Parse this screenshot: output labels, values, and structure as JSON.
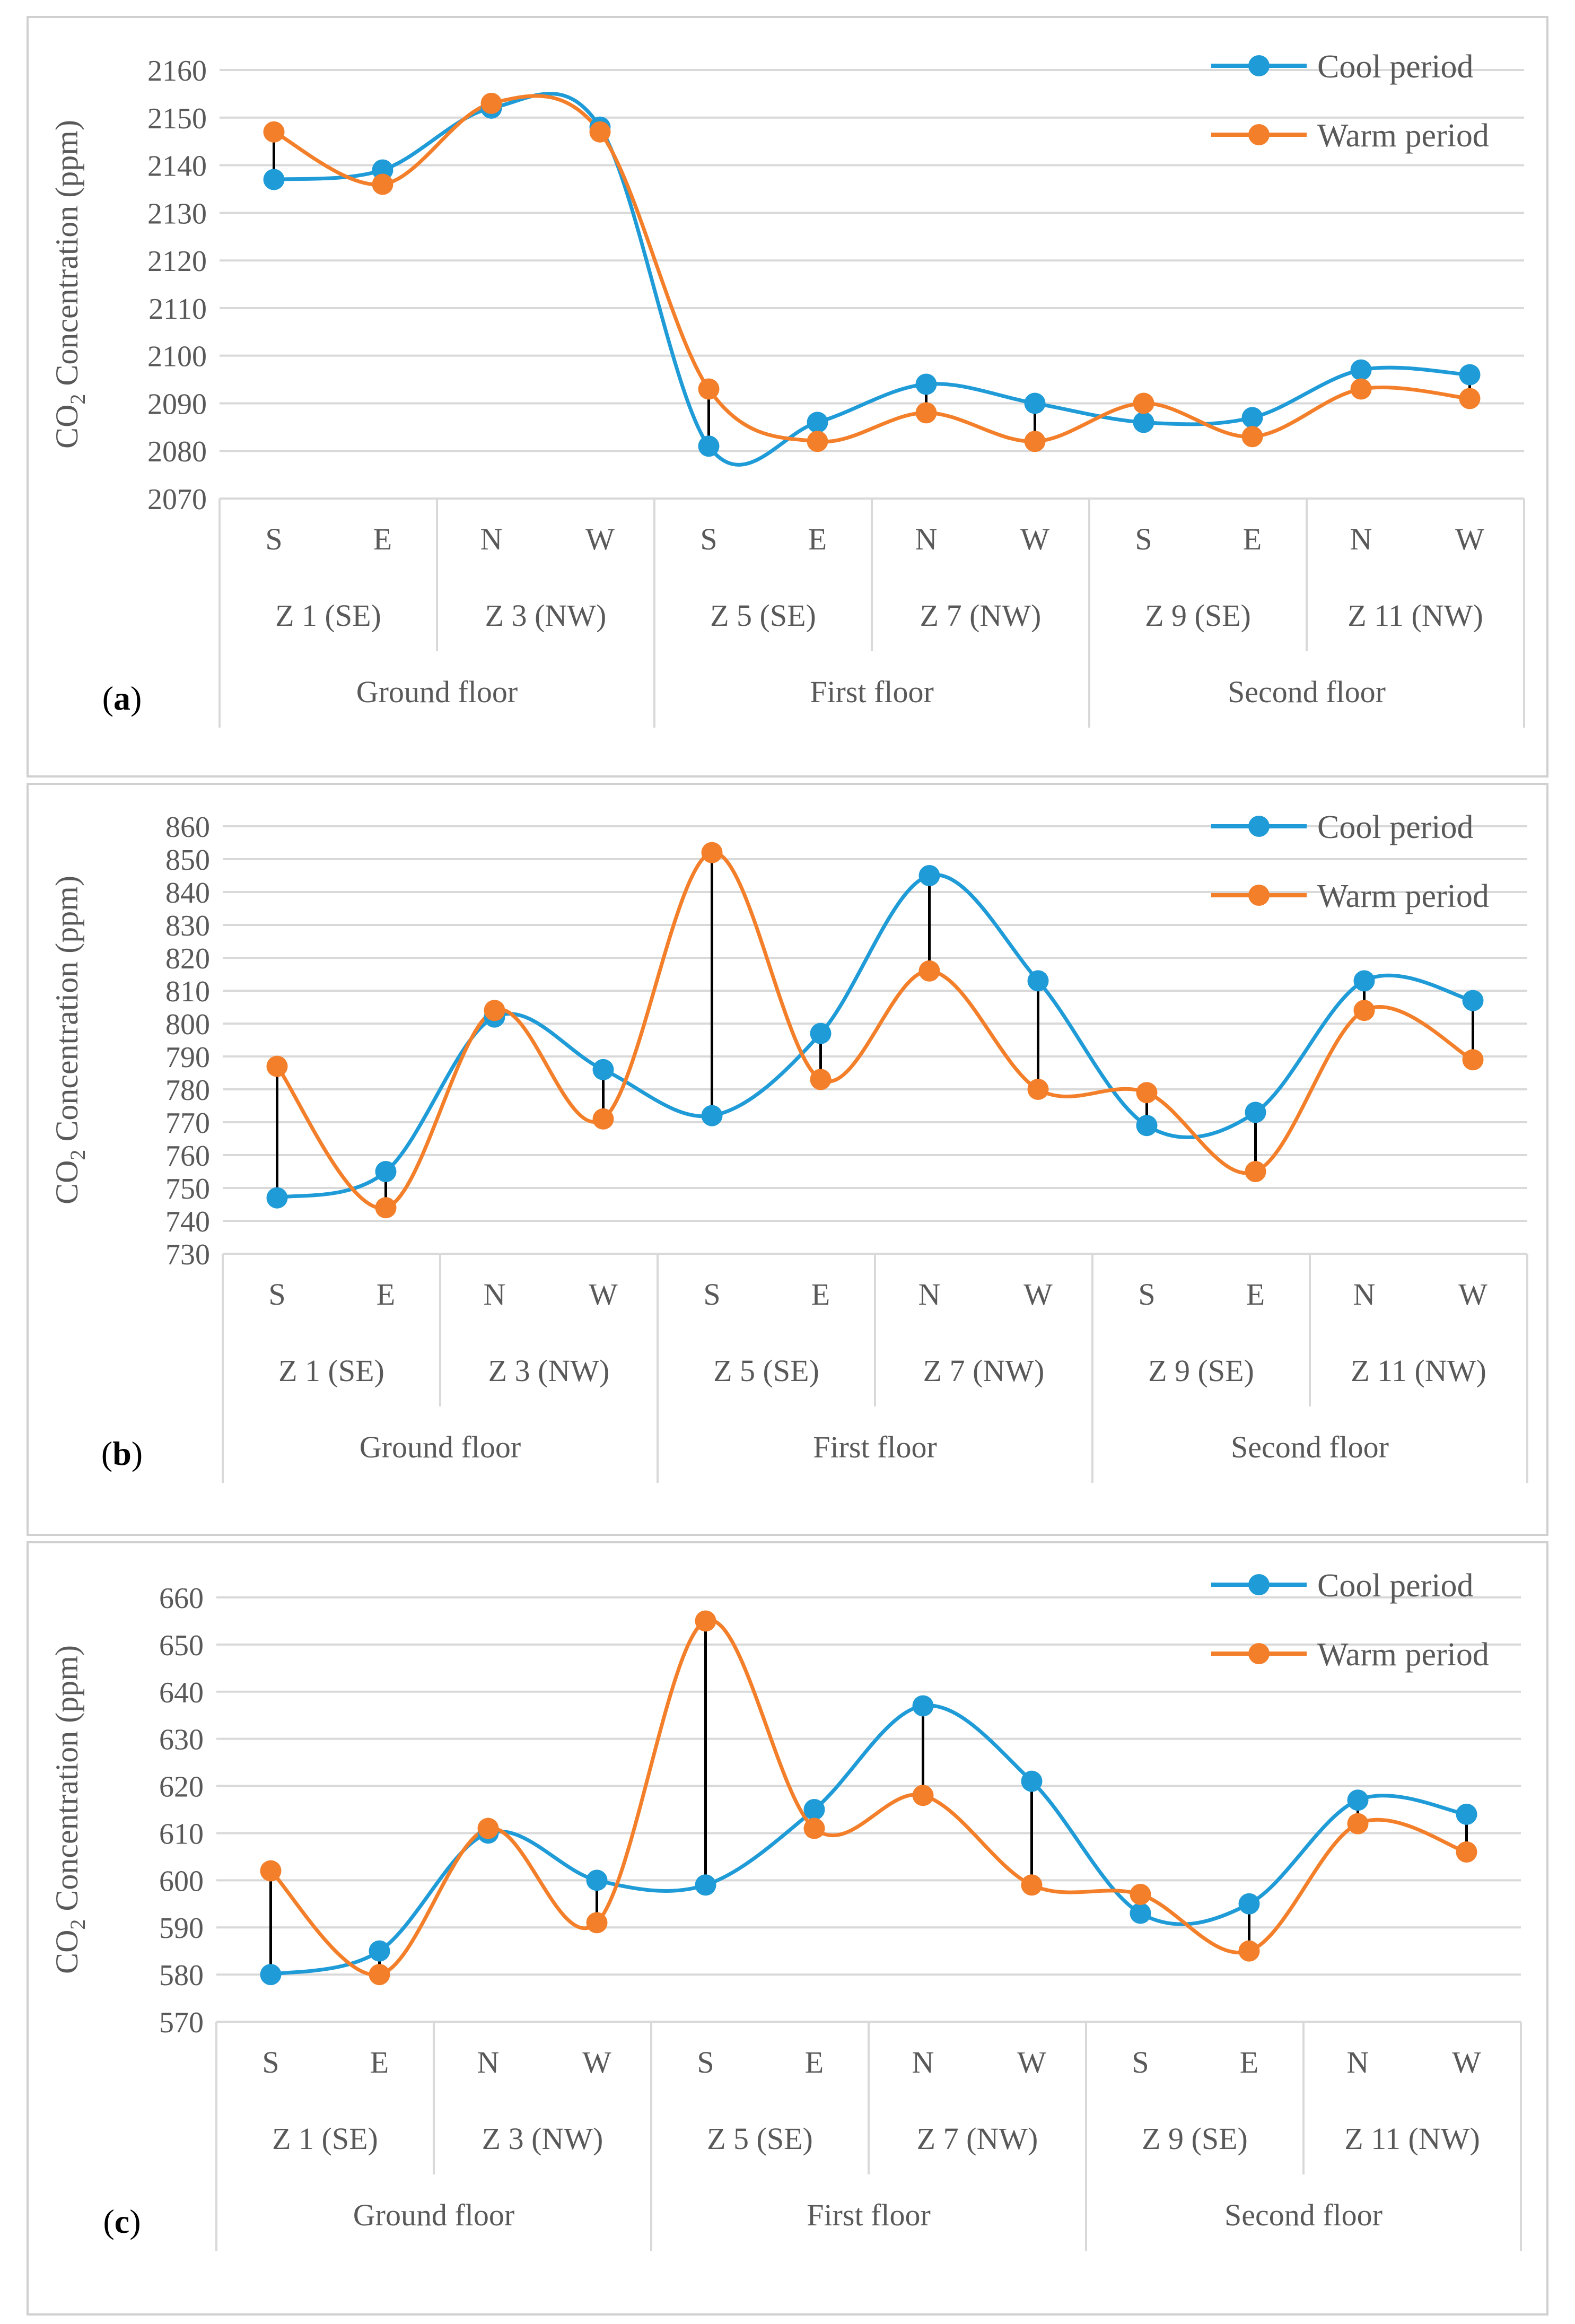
{
  "chart_data": [
    {
      "type": "line",
      "panel_label": "a",
      "ylabel": "CO2 Concentration (ppm)",
      "ylim": [
        2070,
        2160
      ],
      "ystep": 10,
      "directions": [
        "S",
        "E",
        "N",
        "W",
        "S",
        "E",
        "N",
        "W",
        "S",
        "E",
        "N",
        "W"
      ],
      "zones": [
        "Z 1 (SE)",
        "Z 3 (NW)",
        "Z 5 (SE)",
        "Z 7 (NW)",
        "Z 9 (SE)",
        "Z 11 (NW)"
      ],
      "floors": [
        "Ground floor",
        "First floor",
        "Second floor"
      ],
      "legend_position": "top-right",
      "series": [
        {
          "name": "Cool period",
          "color": "#1f9bd7",
          "values": [
            2137,
            2139,
            2152,
            2148,
            2081,
            2086,
            2094,
            2090,
            2086,
            2087,
            2097,
            2096
          ]
        },
        {
          "name": "Warm period",
          "color": "#f47f2a",
          "values": [
            2147,
            2136,
            2153,
            2147,
            2093,
            2082,
            2088,
            2082,
            2090,
            2083,
            2093,
            2091
          ]
        }
      ]
    },
    {
      "type": "line",
      "panel_label": "b",
      "ylabel": "CO2 Concentration (ppm)",
      "ylim": [
        730,
        860
      ],
      "ystep": 10,
      "directions": [
        "S",
        "E",
        "N",
        "W",
        "S",
        "E",
        "N",
        "W",
        "S",
        "E",
        "N",
        "W"
      ],
      "zones": [
        "Z 1 (SE)",
        "Z 3 (NW)",
        "Z 5 (SE)",
        "Z 7 (NW)",
        "Z 9 (SE)",
        "Z 11 (NW)"
      ],
      "floors": [
        "Ground floor",
        "First floor",
        "Second floor"
      ],
      "legend_position": "top-right",
      "series": [
        {
          "name": "Cool period",
          "color": "#1f9bd7",
          "values": [
            747,
            755,
            802,
            786,
            772,
            797,
            845,
            813,
            769,
            773,
            813,
            807
          ]
        },
        {
          "name": "Warm period",
          "color": "#f47f2a",
          "values": [
            787,
            744,
            804,
            771,
            852,
            783,
            816,
            780,
            779,
            755,
            804,
            789
          ]
        }
      ]
    },
    {
      "type": "line",
      "panel_label": "c",
      "ylabel": "CO2 Concentration (ppm)",
      "ylim": [
        570,
        660
      ],
      "ystep": 10,
      "directions": [
        "S",
        "E",
        "N",
        "W",
        "S",
        "E",
        "N",
        "W",
        "S",
        "E",
        "N",
        "W"
      ],
      "zones": [
        "Z 1 (SE)",
        "Z 3 (NW)",
        "Z 5 (SE)",
        "Z 7 (NW)",
        "Z 9 (SE)",
        "Z 11 (NW)"
      ],
      "floors": [
        "Ground floor",
        "First floor",
        "Second floor"
      ],
      "legend_position": "top-right",
      "series": [
        {
          "name": "Cool period",
          "color": "#1f9bd7",
          "values": [
            580,
            585,
            610,
            600,
            599,
            615,
            637,
            621,
            593,
            595,
            617,
            614
          ]
        },
        {
          "name": "Warm period",
          "color": "#f47f2a",
          "values": [
            602,
            580,
            611,
            591,
            655,
            611,
            618,
            599,
            597,
            585,
            612,
            606
          ]
        }
      ]
    }
  ]
}
